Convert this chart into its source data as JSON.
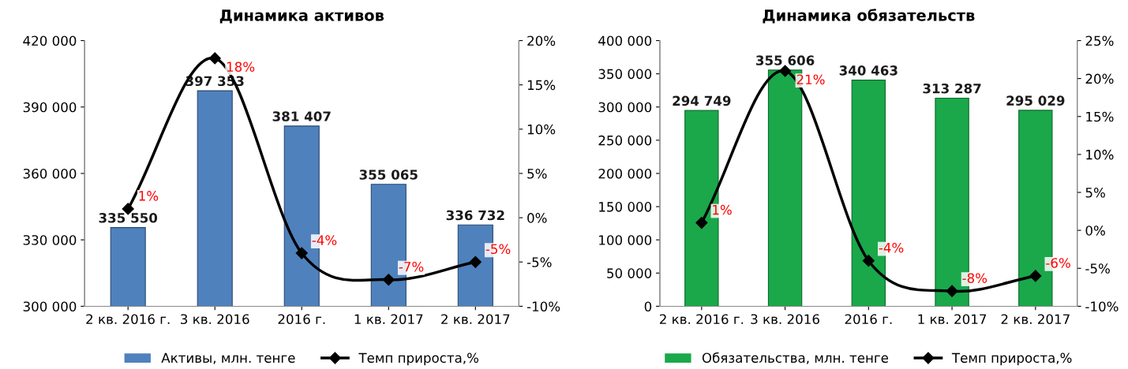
{
  "chart_data": [
    {
      "type": "bar",
      "title": "Динамика активов",
      "categories": [
        "2 кв. 2016 г.",
        "3 кв. 2016",
        "2016 г.",
        "1 кв. 2017",
        "2 кв. 2017"
      ],
      "series": [
        {
          "name": "Активы, млн. тенге",
          "type": "bar",
          "color": "#4f81bd",
          "values": [
            335550,
            397353,
            381407,
            355065,
            336732
          ],
          "value_labels": [
            "335 550",
            "397 353",
            "381 407",
            "355 065",
            "336 732"
          ]
        },
        {
          "name": "Темп прироста,%",
          "type": "line",
          "axis": "y2",
          "color": "#000000",
          "marker": "diamond",
          "values": [
            1,
            18,
            -4,
            -7,
            -5
          ],
          "value_labels": [
            "1%",
            "18%",
            "-4%",
            "-7%",
            "-5%"
          ]
        }
      ],
      "ylim": [
        300000,
        420000
      ],
      "yticks": [
        {
          "value": 300000,
          "label": "300 000"
        },
        {
          "value": 330000,
          "label": "330 000"
        },
        {
          "value": 360000,
          "label": "360 000"
        },
        {
          "value": 390000,
          "label": "390 000"
        },
        {
          "value": 420000,
          "label": "420 000"
        }
      ],
      "y2lim": [
        -10,
        20
      ],
      "y2ticks": [
        {
          "value": -10,
          "label": "-10%"
        },
        {
          "value": -5,
          "label": "-5%"
        },
        {
          "value": 0,
          "label": "0%"
        },
        {
          "value": 5,
          "label": "5%"
        },
        {
          "value": 10,
          "label": "10%"
        },
        {
          "value": 15,
          "label": "15%"
        },
        {
          "value": 20,
          "label": "20%"
        }
      ],
      "grid": false,
      "legend": "bottom"
    },
    {
      "type": "bar",
      "title": "Динамика обязательств",
      "categories": [
        "2 кв. 2016 г.",
        "3 кв. 2016",
        "2016 г.",
        "1 кв. 2017",
        "2 кв. 2017"
      ],
      "series": [
        {
          "name": "Обязательства, млн. тенге",
          "type": "bar",
          "color": "#1aa84a",
          "values": [
            294749,
            355606,
            340463,
            313287,
            295029
          ],
          "value_labels": [
            "294 749",
            "355 606",
            "340 463",
            "313 287",
            "295 029"
          ]
        },
        {
          "name": "Темп прироста,%",
          "type": "line",
          "axis": "y2",
          "color": "#000000",
          "marker": "diamond",
          "values": [
            1,
            21,
            -4,
            -8,
            -6
          ],
          "value_labels": [
            "1%",
            "21%",
            "-4%",
            "-8%",
            "-6%"
          ]
        }
      ],
      "ylim": [
        0,
        400000
      ],
      "yticks": [
        {
          "value": 0,
          "label": "0"
        },
        {
          "value": 50000,
          "label": "50 000"
        },
        {
          "value": 100000,
          "label": "100 000"
        },
        {
          "value": 150000,
          "label": "150 000"
        },
        {
          "value": 200000,
          "label": "200 000"
        },
        {
          "value": 250000,
          "label": "250 000"
        },
        {
          "value": 300000,
          "label": "300 000"
        },
        {
          "value": 350000,
          "label": "350 000"
        },
        {
          "value": 400000,
          "label": "400 000"
        }
      ],
      "y2lim": [
        -10,
        25
      ],
      "y2ticks": [
        {
          "value": -10,
          "label": "-10%"
        },
        {
          "value": -5,
          "label": "-5%"
        },
        {
          "value": 0,
          "label": "0%"
        },
        {
          "value": 5,
          "label": "5%"
        },
        {
          "value": 10,
          "label": "10%"
        },
        {
          "value": 15,
          "label": "15%"
        },
        {
          "value": 20,
          "label": "20%"
        },
        {
          "value": 25,
          "label": "25%"
        }
      ],
      "grid": false,
      "legend": "bottom"
    }
  ]
}
